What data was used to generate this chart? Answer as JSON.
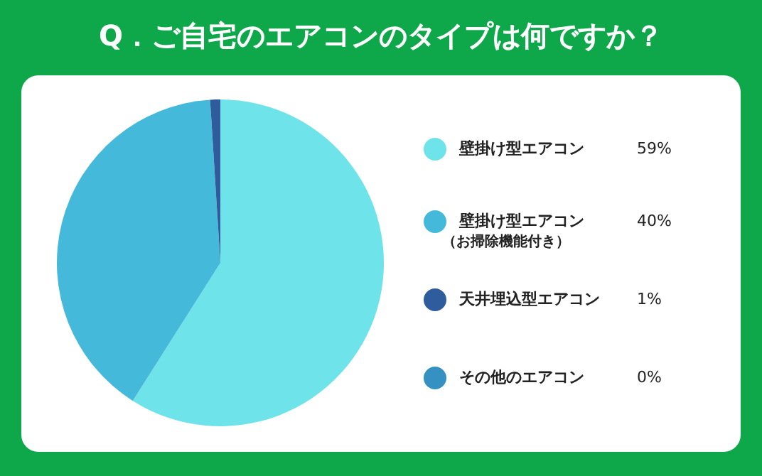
{
  "chart_data": {
    "type": "pie",
    "title": "Q．ご自宅のエアコンのタイプは何ですか？",
    "categories": [
      "壁掛け型エアコン",
      "壁掛け型エアコン（お掃除機能付き）",
      "天井埋込型エアコン",
      "その他のエアコン"
    ],
    "values": [
      59,
      40,
      1,
      0
    ],
    "colors": [
      "#6fe3ea",
      "#45b9d9",
      "#2e5c9c",
      "#3591c2"
    ],
    "value_labels": [
      "59%",
      "40%",
      "1%",
      "0%"
    ],
    "legend": "right"
  }
}
